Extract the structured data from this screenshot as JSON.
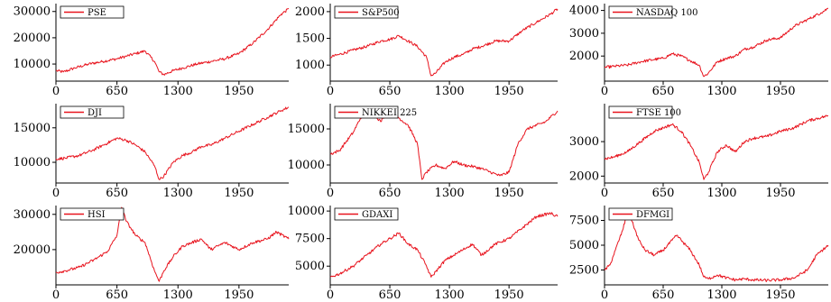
{
  "line_color": "#e8141e",
  "chart_data": [
    {
      "type": "line",
      "legend": "PSE",
      "xticks": [
        0,
        650,
        1300,
        1950
      ],
      "xlim": [
        0,
        2480
      ],
      "yticks": [
        10000,
        20000,
        30000
      ],
      "ylim": [
        3500,
        33000
      ],
      "series": [
        {
          "name": "PSE",
          "x": [
            0,
            80,
            200,
            350,
            500,
            650,
            750,
            850,
            950,
            1050,
            1100,
            1150,
            1250,
            1350,
            1500,
            1650,
            1800,
            1950,
            2100,
            2250,
            2400,
            2480
          ],
          "values": [
            7500,
            7000,
            8500,
            10000,
            11000,
            12000,
            13000,
            14000,
            15000,
            11000,
            7000,
            6000,
            7500,
            8500,
            10000,
            11000,
            12000,
            14000,
            18000,
            23000,
            29000,
            31000
          ]
        }
      ]
    },
    {
      "type": "line",
      "legend": "S&P500",
      "xticks": [
        0,
        650,
        1300,
        1950
      ],
      "xlim": [
        0,
        2480
      ],
      "yticks": [
        1000,
        1500,
        2000
      ],
      "ylim": [
        700,
        2150
      ],
      "series": [
        {
          "name": "S&P500",
          "x": [
            0,
            100,
            250,
            400,
            550,
            650,
            750,
            850,
            950,
            1050,
            1100,
            1150,
            1250,
            1350,
            1450,
            1550,
            1650,
            1800,
            1950,
            2100,
            2250,
            2400,
            2480
          ],
          "values": [
            1150,
            1200,
            1280,
            1350,
            1450,
            1480,
            1550,
            1450,
            1350,
            1150,
            800,
            850,
            1050,
            1150,
            1200,
            1300,
            1350,
            1450,
            1450,
            1650,
            1800,
            1950,
            2050
          ]
        }
      ]
    },
    {
      "type": "line",
      "legend": "NASDAQ 100",
      "xticks": [
        0,
        650,
        1300,
        1950
      ],
      "xlim": [
        0,
        2480
      ],
      "yticks": [
        2000,
        3000,
        4000
      ],
      "ylim": [
        900,
        4300
      ],
      "series": [
        {
          "name": "NASDAQ 100",
          "x": [
            0,
            100,
            250,
            400,
            550,
            650,
            750,
            850,
            950,
            1050,
            1100,
            1150,
            1250,
            1350,
            1450,
            1550,
            1650,
            1800,
            1950,
            2100,
            2250,
            2400,
            2480
          ],
          "values": [
            1500,
            1550,
            1600,
            1750,
            1850,
            1900,
            2100,
            2000,
            1800,
            1600,
            1100,
            1250,
            1750,
            1900,
            2000,
            2300,
            2400,
            2700,
            2800,
            3300,
            3600,
            3900,
            4100
          ]
        }
      ]
    },
    {
      "type": "line",
      "legend": "DJI",
      "xticks": [
        0,
        650,
        1300,
        1950
      ],
      "xlim": [
        0,
        2480
      ],
      "yticks": [
        10000,
        15000
      ],
      "ylim": [
        7000,
        18500
      ],
      "series": [
        {
          "name": "DJI",
          "x": [
            0,
            100,
            250,
            400,
            550,
            650,
            750,
            850,
            950,
            1050,
            1100,
            1150,
            1250,
            1350,
            1450,
            1550,
            1650,
            1800,
            1950,
            2100,
            2250,
            2400,
            2480
          ],
          "values": [
            10500,
            10600,
            11000,
            11800,
            12800,
            13500,
            13200,
            12500,
            11500,
            9500,
            7500,
            8000,
            10000,
            11000,
            11500,
            12300,
            12500,
            13500,
            14500,
            15500,
            16500,
            17500,
            18000
          ]
        }
      ]
    },
    {
      "type": "line",
      "legend": "NIKKEI 225",
      "xticks": [
        0,
        650,
        1300,
        1950
      ],
      "xlim": [
        0,
        2480
      ],
      "yticks": [
        10000,
        15000
      ],
      "ylim": [
        7500,
        18500
      ],
      "series": [
        {
          "name": "NIKKEI 225",
          "x": [
            0,
            100,
            250,
            350,
            450,
            550,
            650,
            750,
            850,
            950,
            1000,
            1050,
            1150,
            1250,
            1350,
            1450,
            1550,
            1650,
            1750,
            1850,
            1950,
            2050,
            2150,
            2250,
            2350,
            2480
          ],
          "values": [
            11500,
            12000,
            14500,
            17000,
            17500,
            16000,
            18000,
            16500,
            15500,
            13000,
            8000,
            9000,
            10000,
            9500,
            10500,
            10000,
            9800,
            9500,
            9000,
            8500,
            9000,
            13000,
            15000,
            15500,
            16000,
            17500
          ]
        }
      ]
    },
    {
      "type": "line",
      "legend": "FTSE 100",
      "xticks": [
        0,
        650,
        1300,
        1950
      ],
      "xlim": [
        0,
        2480
      ],
      "yticks": [
        2000,
        3000
      ],
      "ylim": [
        1800,
        4100
      ],
      "series": [
        {
          "name": "FTSE 100",
          "x": [
            0,
            100,
            250,
            400,
            550,
            650,
            750,
            850,
            950,
            1050,
            1100,
            1150,
            1250,
            1350,
            1450,
            1550,
            1650,
            1800,
            1950,
            2100,
            2250,
            2400,
            2480
          ],
          "values": [
            2500,
            2550,
            2700,
            3000,
            3300,
            3400,
            3500,
            3300,
            2900,
            2400,
            1900,
            2100,
            2700,
            2900,
            2700,
            3000,
            3100,
            3150,
            3300,
            3400,
            3600,
            3700,
            3750
          ]
        }
      ]
    },
    {
      "type": "line",
      "legend": "HSI",
      "xticks": [
        0,
        650,
        1300,
        1950
      ],
      "xlim": [
        0,
        2480
      ],
      "yticks": [
        20000,
        30000
      ],
      "ylim": [
        10000,
        32500
      ],
      "series": [
        {
          "name": "HSI",
          "x": [
            0,
            100,
            250,
            400,
            550,
            650,
            700,
            750,
            800,
            850,
            950,
            1050,
            1100,
            1150,
            1250,
            1350,
            1450,
            1550,
            1650,
            1800,
            1950,
            2100,
            2250,
            2350,
            2480
          ],
          "values": [
            13500,
            14000,
            15000,
            17000,
            19500,
            24000,
            32000,
            28000,
            26000,
            24000,
            22000,
            14000,
            11000,
            14000,
            18000,
            21000,
            22000,
            23000,
            20000,
            22000,
            20000,
            22000,
            23000,
            25000,
            23000
          ]
        }
      ]
    },
    {
      "type": "line",
      "legend": "GDAXI",
      "xticks": [
        0,
        650,
        1300,
        1950
      ],
      "xlim": [
        0,
        2480
      ],
      "yticks": [
        5000,
        7500,
        10000
      ],
      "ylim": [
        3300,
        10500
      ],
      "series": [
        {
          "name": "GDAXI",
          "x": [
            0,
            100,
            250,
            400,
            550,
            650,
            750,
            850,
            950,
            1050,
            1100,
            1150,
            1250,
            1350,
            1450,
            1550,
            1650,
            1800,
            1950,
            2100,
            2250,
            2400,
            2480
          ],
          "values": [
            4000,
            4300,
            5000,
            6000,
            7000,
            7500,
            8000,
            7000,
            6500,
            5000,
            4000,
            4500,
            5500,
            6000,
            6500,
            7000,
            6000,
            7000,
            7500,
            8500,
            9500,
            9800,
            9500
          ]
        }
      ]
    },
    {
      "type": "line",
      "legend": "DFMGI",
      "xticks": [
        0,
        650,
        1300,
        1950
      ],
      "xlim": [
        0,
        2480
      ],
      "yticks": [
        2500,
        5000,
        7500
      ],
      "ylim": [
        1000,
        9000
      ],
      "series": [
        {
          "name": "DFMGI",
          "x": [
            0,
            60,
            120,
            200,
            260,
            320,
            380,
            450,
            550,
            650,
            750,
            800,
            850,
            950,
            1050,
            1100,
            1150,
            1250,
            1350,
            1450,
            1550,
            1650,
            1800,
            1950,
            2100,
            2250,
            2350,
            2480
          ],
          "values": [
            2500,
            3000,
            4500,
            6500,
            8500,
            7000,
            5500,
            4500,
            4000,
            4500,
            5500,
            6000,
            5500,
            4500,
            3000,
            1800,
            1600,
            2000,
            1700,
            1500,
            1600,
            1500,
            1450,
            1500,
            1700,
            2500,
            4000,
            5000
          ]
        }
      ]
    }
  ]
}
